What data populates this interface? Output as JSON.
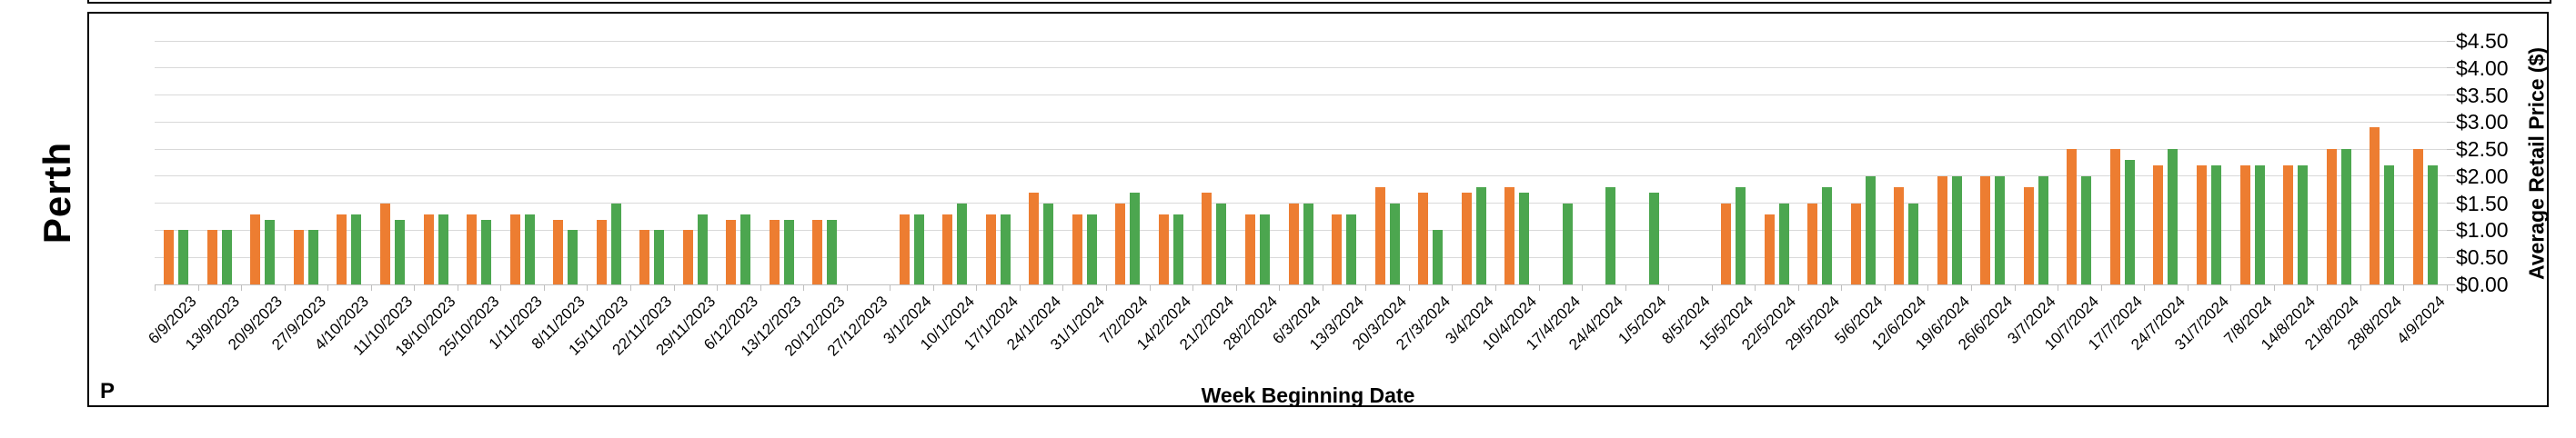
{
  "row_label": "Perth",
  "bottom_left_text": "P",
  "colors": {
    "series_orange": "#ED7D31",
    "series_green": "#4CA64F",
    "gridline": "#D9D9D9",
    "axis": "#BFBFBF",
    "border": "#000000",
    "background": "#FFFFFF"
  },
  "chart_data": {
    "type": "bar",
    "title": "",
    "xlabel": "Week Beginning Date",
    "ylabel": "Average Retail Price ($)",
    "ylim": [
      0,
      4.5
    ],
    "ytick_step": 0.5,
    "ytick_labels_top_to_bottom": [
      "$4.50",
      "$4.00",
      "$3.50",
      "$3.00",
      "$2.50",
      "$2.00",
      "$1.50",
      "$1.00",
      "$0.50",
      "$0.00"
    ],
    "grid": true,
    "legend_position": "none",
    "categories": [
      "6/9/2023",
      "13/9/2023",
      "20/9/2023",
      "27/9/2023",
      "4/10/2023",
      "11/10/2023",
      "18/10/2023",
      "25/10/2023",
      "1/11/2023",
      "8/11/2023",
      "15/11/2023",
      "22/11/2023",
      "29/11/2023",
      "6/12/2023",
      "13/12/2023",
      "20/12/2023",
      "27/12/2023",
      "3/1/2024",
      "10/1/2024",
      "17/1/2024",
      "24/1/2024",
      "31/1/2024",
      "7/2/2024",
      "14/2/2024",
      "21/2/2024",
      "28/2/2024",
      "6/3/2024",
      "13/3/2024",
      "20/3/2024",
      "27/3/2024",
      "3/4/2024",
      "10/4/2024",
      "17/4/2024",
      "24/4/2024",
      "1/5/2024",
      "8/5/2024",
      "15/5/2024",
      "22/5/2024",
      "29/5/2024",
      "5/6/2024",
      "12/6/2024",
      "19/6/2024",
      "26/6/2024",
      "3/7/2024",
      "10/7/2024",
      "17/7/2024",
      "24/7/2024",
      "31/7/2024",
      "7/8/2024",
      "14/8/2024",
      "21/8/2024",
      "28/8/2024",
      "4/9/2024"
    ],
    "series": [
      {
        "name": "series_orange",
        "color": "#ED7D31",
        "values": [
          1.0,
          1.0,
          1.3,
          1.0,
          1.3,
          1.5,
          1.3,
          1.3,
          1.3,
          1.2,
          1.2,
          1.0,
          1.0,
          1.2,
          1.2,
          1.2,
          null,
          1.3,
          1.3,
          1.3,
          1.7,
          1.3,
          1.5,
          1.3,
          1.7,
          1.3,
          1.5,
          1.3,
          1.8,
          1.7,
          1.7,
          1.8,
          null,
          null,
          null,
          null,
          1.5,
          1.3,
          1.5,
          1.5,
          1.8,
          2.0,
          2.0,
          1.8,
          2.5,
          2.5,
          2.2,
          2.2,
          2.2,
          2.2,
          2.5,
          2.9,
          2.5
        ]
      },
      {
        "name": "series_green",
        "color": "#4CA64F",
        "values": [
          1.0,
          1.0,
          1.2,
          1.0,
          1.3,
          1.2,
          1.3,
          1.2,
          1.3,
          1.0,
          1.5,
          1.0,
          1.3,
          1.3,
          1.2,
          1.2,
          null,
          1.3,
          1.5,
          1.3,
          1.5,
          1.3,
          1.7,
          1.3,
          1.5,
          1.3,
          1.5,
          1.3,
          1.5,
          1.0,
          1.8,
          1.7,
          1.5,
          1.8,
          1.7,
          null,
          1.8,
          1.5,
          1.8,
          2.0,
          1.5,
          2.0,
          2.0,
          2.0,
          2.0,
          2.3,
          2.5,
          2.2,
          2.2,
          2.2,
          2.5,
          2.2,
          2.2
        ]
      }
    ]
  }
}
